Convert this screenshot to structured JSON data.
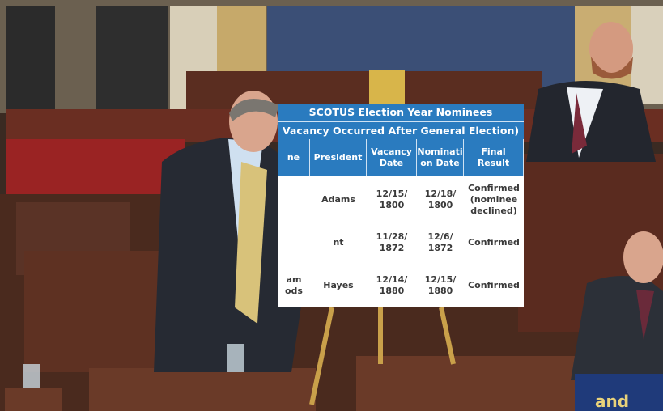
{
  "poster": {
    "title": "SCOTUS Election Year Nominees",
    "subtitle": "Vacancy Occurred After General Election)",
    "table": {
      "headers": [
        "ne",
        "President",
        "Vacancy Date",
        "Nominati on Date",
        "Final Result"
      ],
      "rows": [
        {
          "president": "Adams",
          "vacancy_date": "12/15/ 1800",
          "nomination_date": "12/18/ 1800",
          "result": "Confirmed (nominee declined)"
        },
        {
          "president": "nt",
          "vacancy_date": "11/28/ 1872",
          "nomination_date": "12/6/ 1872",
          "result": "Confirmed"
        },
        {
          "nominee": "am ods",
          "president": "Hayes",
          "vacancy_date": "12/14/ 1880",
          "nomination_date": "12/15/ 1880",
          "result": "Confirmed"
        }
      ]
    }
  },
  "sign": {
    "text": "and"
  }
}
